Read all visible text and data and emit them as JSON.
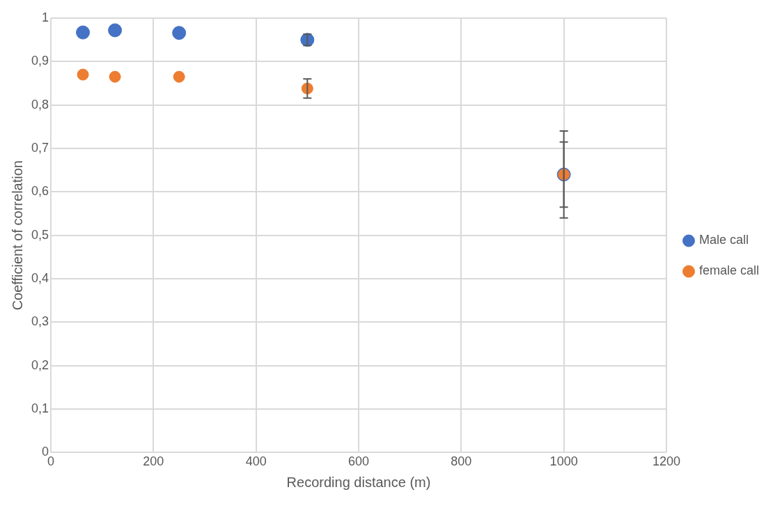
{
  "chart_data": {
    "type": "scatter",
    "xlabel": "Recording distance (m)",
    "ylabel": "Coefficient of correlation",
    "x": [
      62.5,
      125,
      250,
      500,
      1000
    ],
    "series": [
      {
        "name": "Male call",
        "color": "#4472c4",
        "values": [
          0.967,
          0.972,
          0.966,
          0.95,
          0.64
        ],
        "errors": [
          null,
          null,
          null,
          0.013,
          0.075
        ]
      },
      {
        "name": "female call",
        "color": "#ed7d31",
        "values": [
          0.87,
          0.865,
          0.865,
          0.838,
          0.64
        ],
        "errors": [
          null,
          null,
          null,
          0.022,
          0.1
        ]
      }
    ],
    "xlim": [
      0,
      1200
    ],
    "xticks": [
      0,
      200,
      400,
      600,
      800,
      1000,
      1200
    ],
    "ylim": [
      0,
      1
    ],
    "yticks": [
      0,
      {
        "value": 0.1,
        "label": "0,1"
      },
      {
        "value": 0.2,
        "label": "0,2"
      },
      {
        "value": 0.3,
        "label": "0,3"
      },
      {
        "value": 0.4,
        "label": "0,4"
      },
      {
        "value": 0.5,
        "label": "0,5"
      },
      {
        "value": 0.6,
        "label": "0,6"
      },
      {
        "value": 0.7,
        "label": "0,7"
      },
      {
        "value": 0.8,
        "label": "0,8"
      },
      {
        "value": 0.9,
        "label": "0,9"
      },
      1
    ],
    "grid": true,
    "legend": "right",
    "marker": "circle"
  }
}
